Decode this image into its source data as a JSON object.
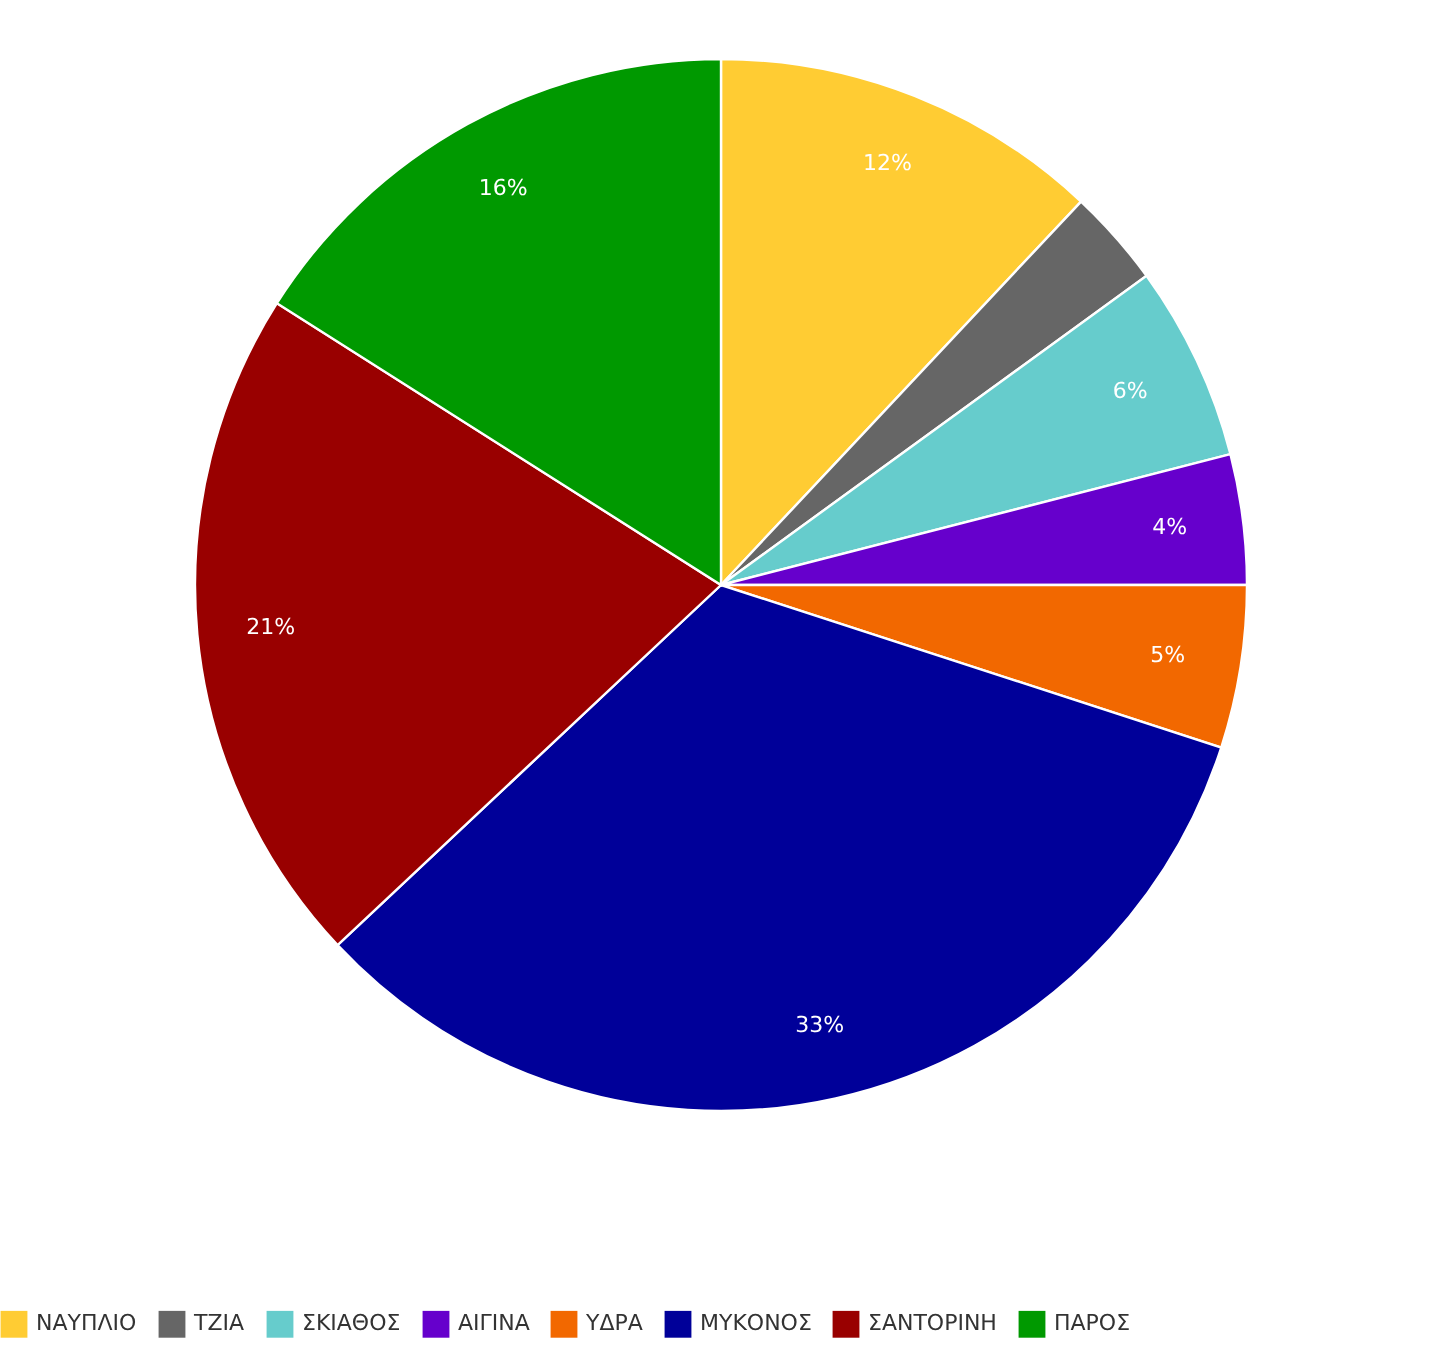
{
  "chart_data": {
    "type": "pie",
    "categories": [
      "ΝΑΥΠΛΙΟ",
      "ΤΖΙΑ",
      "ΣΚΙΑΘΟΣ",
      "ΑΙΓΙΝΑ",
      "ΥΔΡΑ",
      "ΜΥΚΟΝΟΣ",
      "ΣΑΝΤΟΡΙΝΗ",
      "ΠΑΡΟΣ"
    ],
    "values": [
      12,
      3,
      6,
      4,
      5,
      33,
      21,
      16
    ],
    "value_labels": [
      "12%",
      null,
      "6%",
      "4%",
      "5%",
      "33%",
      "21%",
      "16%"
    ],
    "colors": [
      "#ffcc33",
      "#666666",
      "#66cccc",
      "#6600cc",
      "#f26800",
      "#000099",
      "#990000",
      "#009900"
    ],
    "legend": "bottom"
  }
}
